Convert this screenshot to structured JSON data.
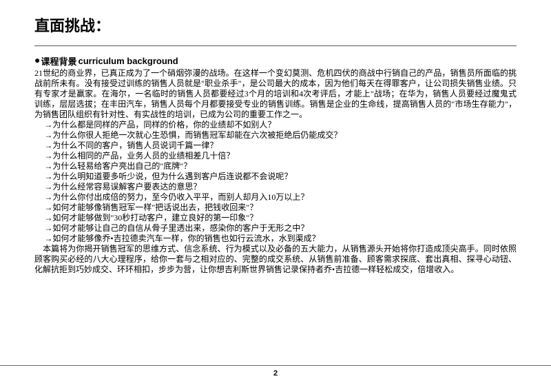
{
  "colors": {
    "text": "#000000",
    "line": "#555555",
    "background": "#ffffff"
  },
  "typography": {
    "title_fontsize": 22,
    "heading_fontsize": 13,
    "body_fontsize": 12,
    "body_line_height": 1.25,
    "font_family": "SimSun"
  },
  "title": "直面挑战：",
  "section": {
    "bullet": "●",
    "heading_cn": "课程背景",
    "heading_en": "curriculum background"
  },
  "intro_paragraph": "21世纪的商业界，已真正成为了一个硝烟弥漫的战场。在这样一个变幻莫测、危机四伏的商战中行销自己的产品，销售员所面临的挑战前所未有。没有接受过训练的销售人员就是\"职业杀手\"，是公司最大的成本，因为他们每天在得罪客户，让公司损失销售业绩。只有专家才是赢家。在海尔，一名临时的销售人员都要经过3个月的培训和4次考评后，才能上\"战场；在华为，销售人员要经过魔鬼式训练，层层选拔；在丰田汽车，销售人员每个月都要接受专业的销售训练。销售是企业的生命线，提高销售人员的\"市场生存能力\"，为销售团队组织有针对性、有实战性的培训，已成为公司的重要工作之一。",
  "questions": [
    "→为什么都是同样的产品，同样的价格，你的业绩却不如别人？",
    "→为什么你很人拒绝一次就心生恐惧，而销售冠军却能在六次被拒绝后仍能成交？",
    "→为什么不同的客户，销售人员说词千篇一律？",
    "→为什么相同的产品，业务人员的业绩相差几十倍？",
    "→为什么轻易给客户亮出自己的\"底牌\"？",
    "→为什么明知道要多听少说，但为什么遇到客户后连说都不会说呢？",
    "→为什么经常容易误解客户要表达的意思？",
    "→为什么你付出成倍的努力，至今仍收入平平，而别人却月入10万以上？",
    "→如何才能够像销售冠军一样\"把话说出去，把钱收回来\"？",
    "→如何才能够做到\"30秒打动客户，建立良好的第一印象\"？",
    "→如何才能够让自己的自信从骨子里透出来，感染你的客户于无形之中？",
    "→如何才能够像乔•吉拉德卖汽车一样，你的销售也如行云流水，水到渠成？"
  ],
  "closing_paragraph": "　本篇将为你揭开销售冠军的思维方式、信念系统、行为模式以及必备的五大能力，从销售源头开始将你打造成顶尖高手。同时依照顾客购买必经的八大心理程序，给你一套与之相对应的、完整的成交系统、从销售前准备、顾客需求探底、套出真相、探寻心动钮、化解抗拒到巧妙成交、环环相扣，步步为营，让你想吉利斯世界销售记录保持者乔•吉拉德一样轻松成交，倍增收入。",
  "page_number": "2"
}
